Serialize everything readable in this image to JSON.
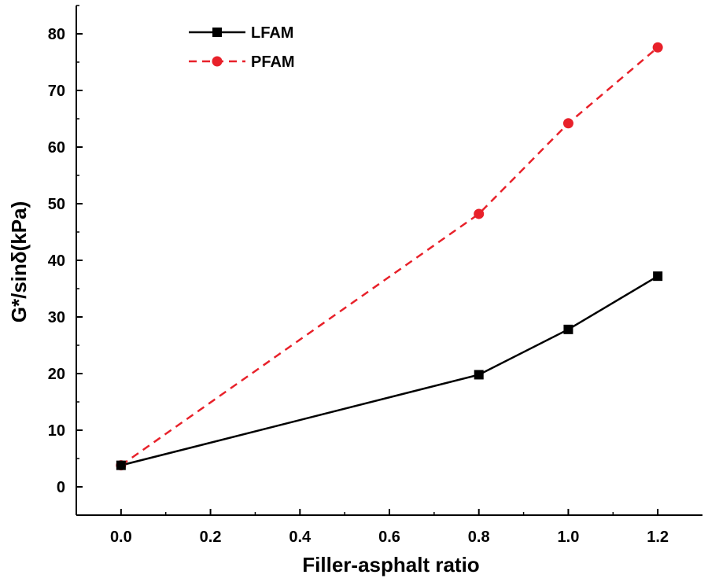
{
  "chart_data": {
    "type": "line",
    "title": "",
    "xlabel": "Filler-asphalt ratio",
    "ylabel": "G*/sinδ(kPa)",
    "xlim": [
      -0.1,
      1.3
    ],
    "ylim": [
      -5,
      85
    ],
    "x_ticks": [
      0.0,
      0.2,
      0.4,
      0.6,
      0.8,
      1.0,
      1.2
    ],
    "x_tick_labels": [
      "0.0",
      "0.2",
      "0.4",
      "0.6",
      "0.8",
      "1.0",
      "1.2"
    ],
    "y_ticks": [
      0,
      10,
      20,
      30,
      40,
      50,
      60,
      70,
      80
    ],
    "y_tick_labels": [
      "0",
      "10",
      "20",
      "30",
      "40",
      "50",
      "60",
      "70",
      "80"
    ],
    "grid": false,
    "legend_position": "top-left",
    "series": [
      {
        "name": "LFAM",
        "x": [
          0.0,
          0.8,
          1.0,
          1.2
        ],
        "values": [
          3.8,
          19.8,
          27.8,
          37.2
        ],
        "color": "#000000",
        "line_style": "solid",
        "marker": "square"
      },
      {
        "name": "PFAM",
        "x": [
          0.0,
          0.8,
          1.0,
          1.2
        ],
        "values": [
          3.8,
          48.2,
          64.2,
          77.6
        ],
        "color": "#e8212a",
        "line_style": "dashed",
        "marker": "circle"
      }
    ]
  }
}
